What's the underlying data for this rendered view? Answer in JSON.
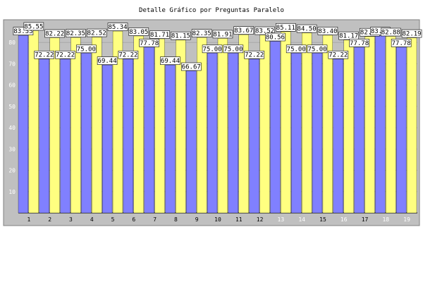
{
  "chart_data": {
    "type": "bar",
    "title": "Detalle Gráfico por Preguntas Paralelo",
    "categories": [
      "1",
      "2",
      "3",
      "4",
      "5",
      "6",
      "7",
      "8",
      "9",
      "10",
      "11",
      "12",
      "13",
      "14",
      "15",
      "16",
      "17",
      "18",
      "19"
    ],
    "series": [
      {
        "values": [
          83.33,
          72.22,
          72.22,
          75.0,
          69.44,
          72.22,
          77.78,
          69.44,
          66.67,
          75.0,
          75.0,
          72.22,
          80.56,
          75.0,
          75.0,
          72.22,
          77.78,
          83.33,
          77.78
        ]
      },
      {
        "values": [
          85.55,
          82.22,
          82.35,
          82.52,
          85.34,
          83.05,
          81.71,
          81.15,
          82.35,
          81.91,
          83.67,
          83.52,
          85.11,
          84.5,
          83.4,
          81.17,
          82.81,
          82.88,
          82.19
        ]
      }
    ],
    "yticks": [
      10,
      20,
      30,
      40,
      50,
      60,
      70,
      80
    ],
    "ylim": [
      0,
      90
    ],
    "grid": true,
    "colors": {
      "series1": "#8080ff",
      "series2": "#ffff80",
      "plot_bg": "#c0c0c0",
      "tick_label": "#ffffff",
      "tick_label_dim": "#e0e0e0"
    }
  }
}
